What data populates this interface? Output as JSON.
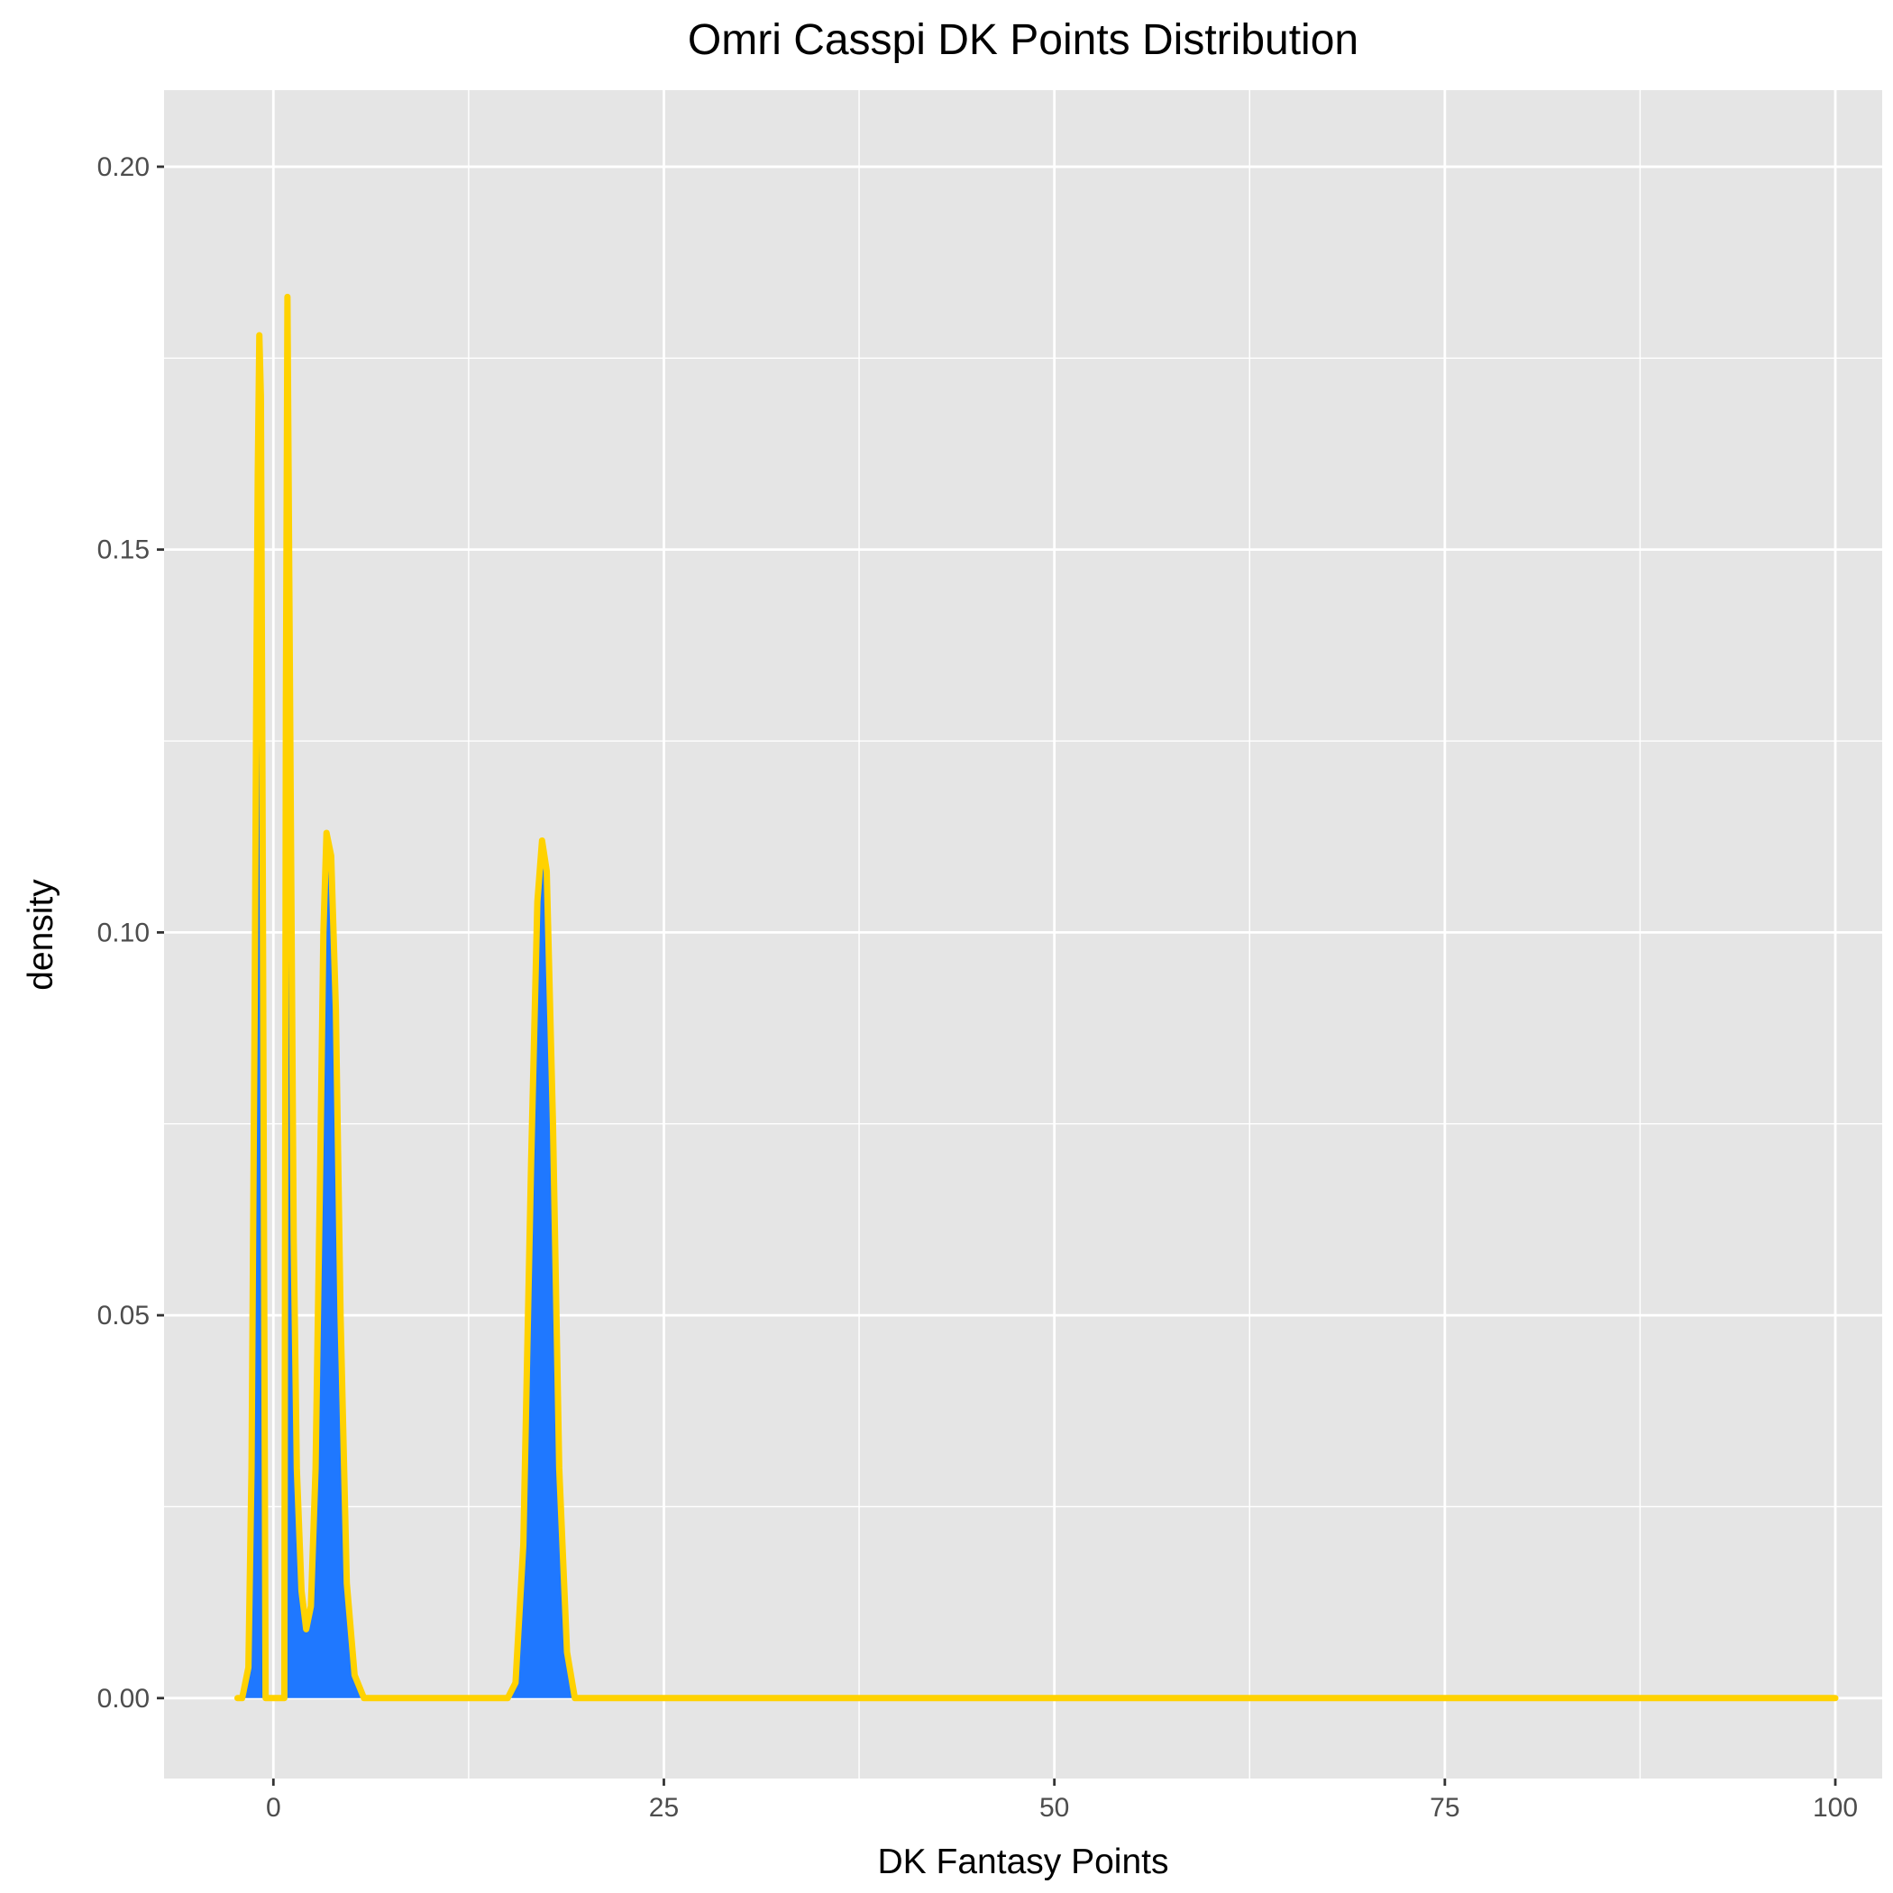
{
  "chart_data": {
    "type": "area",
    "title": "Omri Casspi DK Points Distribution",
    "xlabel": "DK Fantasy Points",
    "ylabel": "density",
    "xlim": [
      -7,
      103
    ],
    "ylim": [
      -0.0105,
      0.21
    ],
    "x_ticks": [
      0,
      25,
      50,
      75,
      100
    ],
    "x_tick_labels": [
      "0",
      "25",
      "50",
      "75",
      "100"
    ],
    "x_minor_ticks": [
      12.5,
      37.5,
      62.5,
      87.5
    ],
    "y_ticks": [
      0.0,
      0.05,
      0.1,
      0.15,
      0.2
    ],
    "y_tick_labels": [
      "0.00",
      "0.05",
      "0.10",
      "0.15",
      "0.20"
    ],
    "y_minor_ticks": [
      0.025,
      0.075,
      0.125,
      0.175
    ],
    "grid": true,
    "legend": "none",
    "colors": {
      "panel": "#e5e5e5",
      "grid": "#ffffff",
      "fill": "#1f78ff",
      "line": "#ffd200"
    },
    "series": [
      {
        "fill_regions": [
          [
            [
              -2.0,
              0.0
            ],
            [
              -1.6,
              0.004
            ],
            [
              -1.4,
              0.03
            ],
            [
              -1.2,
              0.09
            ],
            [
              -1.1,
              0.13
            ],
            [
              -1.0,
              0.16
            ],
            [
              -0.9,
              0.178
            ],
            [
              -0.8,
              0.17
            ],
            [
              -0.7,
              0.12
            ],
            [
              -0.6,
              0.06
            ],
            [
              -0.5,
              0.0
            ]
          ],
          [
            [
              0.7,
              0.0
            ],
            [
              0.8,
              0.13
            ],
            [
              0.9,
              0.183
            ],
            [
              1.1,
              0.12
            ],
            [
              1.3,
              0.06
            ],
            [
              1.5,
              0.03
            ],
            [
              1.8,
              0.014
            ],
            [
              2.1,
              0.009
            ],
            [
              2.4,
              0.012
            ],
            [
              2.7,
              0.03
            ],
            [
              3.0,
              0.07
            ],
            [
              3.2,
              0.1
            ],
            [
              3.4,
              0.113
            ],
            [
              3.7,
              0.11
            ],
            [
              4.0,
              0.09
            ],
            [
              4.3,
              0.05
            ],
            [
              4.7,
              0.015
            ],
            [
              5.2,
              0.003
            ],
            [
              5.8,
              0.0
            ]
          ],
          [
            [
              15.0,
              0.0
            ],
            [
              15.5,
              0.002
            ],
            [
              16.0,
              0.02
            ],
            [
              16.5,
              0.07
            ],
            [
              16.9,
              0.104
            ],
            [
              17.2,
              0.112
            ],
            [
              17.5,
              0.108
            ],
            [
              17.9,
              0.075
            ],
            [
              18.3,
              0.03
            ],
            [
              18.8,
              0.006
            ],
            [
              19.3,
              0.0
            ]
          ]
        ],
        "line": [
          [
            -2.3,
            0.0
          ],
          [
            -2.0,
            0.0
          ],
          [
            -1.6,
            0.004
          ],
          [
            -1.4,
            0.03
          ],
          [
            -1.2,
            0.09
          ],
          [
            -1.1,
            0.13
          ],
          [
            -1.0,
            0.16
          ],
          [
            -0.9,
            0.178
          ],
          [
            -0.8,
            0.17
          ],
          [
            -0.7,
            0.12
          ],
          [
            -0.6,
            0.06
          ],
          [
            -0.5,
            0.0
          ],
          [
            0.7,
            0.0
          ],
          [
            0.8,
            0.13
          ],
          [
            0.9,
            0.183
          ],
          [
            1.1,
            0.12
          ],
          [
            1.3,
            0.06
          ],
          [
            1.5,
            0.03
          ],
          [
            1.8,
            0.014
          ],
          [
            2.1,
            0.009
          ],
          [
            2.4,
            0.012
          ],
          [
            2.7,
            0.03
          ],
          [
            3.0,
            0.07
          ],
          [
            3.2,
            0.1
          ],
          [
            3.4,
            0.113
          ],
          [
            3.7,
            0.11
          ],
          [
            4.0,
            0.09
          ],
          [
            4.3,
            0.05
          ],
          [
            4.7,
            0.015
          ],
          [
            5.2,
            0.003
          ],
          [
            5.8,
            0.0
          ],
          [
            15.0,
            0.0
          ],
          [
            15.5,
            0.002
          ],
          [
            16.0,
            0.02
          ],
          [
            16.5,
            0.07
          ],
          [
            16.9,
            0.104
          ],
          [
            17.2,
            0.112
          ],
          [
            17.5,
            0.108
          ],
          [
            17.9,
            0.075
          ],
          [
            18.3,
            0.03
          ],
          [
            18.8,
            0.006
          ],
          [
            19.3,
            0.0
          ],
          [
            100.0,
            0.0
          ]
        ]
      }
    ]
  }
}
